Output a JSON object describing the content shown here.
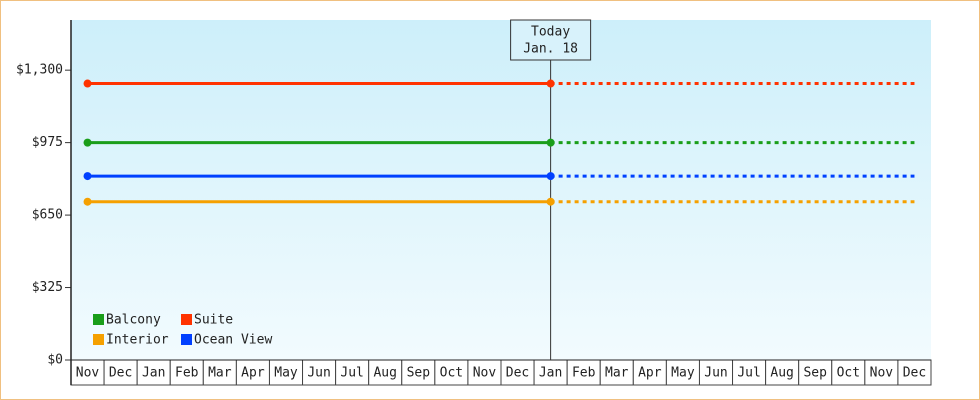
{
  "chart_data": {
    "type": "line",
    "categories": [
      "Nov",
      "Dec",
      "Jan",
      "Feb",
      "Mar",
      "Apr",
      "May",
      "Jun",
      "Jul",
      "Aug",
      "Sep",
      "Oct",
      "Nov",
      "Dec",
      "Jan",
      "Feb",
      "Mar",
      "Apr",
      "May",
      "Jun",
      "Jul",
      "Aug",
      "Sep",
      "Oct",
      "Nov",
      "Dec"
    ],
    "series": [
      {
        "name": "Balcony",
        "color": "#1a9e1a",
        "values": [
          975,
          975,
          975,
          975,
          975,
          975,
          975,
          975,
          975,
          975,
          975,
          975,
          975,
          975,
          975,
          975,
          975,
          975,
          975,
          975,
          975,
          975,
          975,
          975,
          975,
          975
        ]
      },
      {
        "name": "Suite",
        "color": "#ff3300",
        "values": [
          1240,
          1240,
          1240,
          1240,
          1240,
          1240,
          1240,
          1240,
          1240,
          1240,
          1240,
          1240,
          1240,
          1240,
          1240,
          1240,
          1240,
          1240,
          1240,
          1240,
          1240,
          1240,
          1240,
          1240,
          1240,
          1240
        ]
      },
      {
        "name": "Interior",
        "color": "#f5a000",
        "values": [
          710,
          710,
          710,
          710,
          710,
          710,
          710,
          710,
          710,
          710,
          710,
          710,
          710,
          710,
          710,
          710,
          710,
          710,
          710,
          710,
          710,
          710,
          710,
          710,
          710,
          710
        ]
      },
      {
        "name": "Ocean View",
        "color": "#0040ff",
        "values": [
          825,
          825,
          825,
          825,
          825,
          825,
          825,
          825,
          825,
          825,
          825,
          825,
          825,
          825,
          825,
          825,
          825,
          825,
          825,
          825,
          825,
          825,
          825,
          825,
          825,
          825
        ]
      }
    ],
    "forecast_from": 14,
    "annotation": {
      "lines": [
        "Today",
        "Jan. 18"
      ],
      "category_index": 14
    },
    "ylim": [
      0,
      1525
    ],
    "yticks": [
      {
        "value": 0,
        "label": "$0"
      },
      {
        "value": 325,
        "label": "$325"
      },
      {
        "value": 650,
        "label": "$650"
      },
      {
        "value": 975,
        "label": "$975"
      },
      {
        "value": 1300,
        "label": "$1,300"
      }
    ],
    "legend": "bottom-left"
  }
}
